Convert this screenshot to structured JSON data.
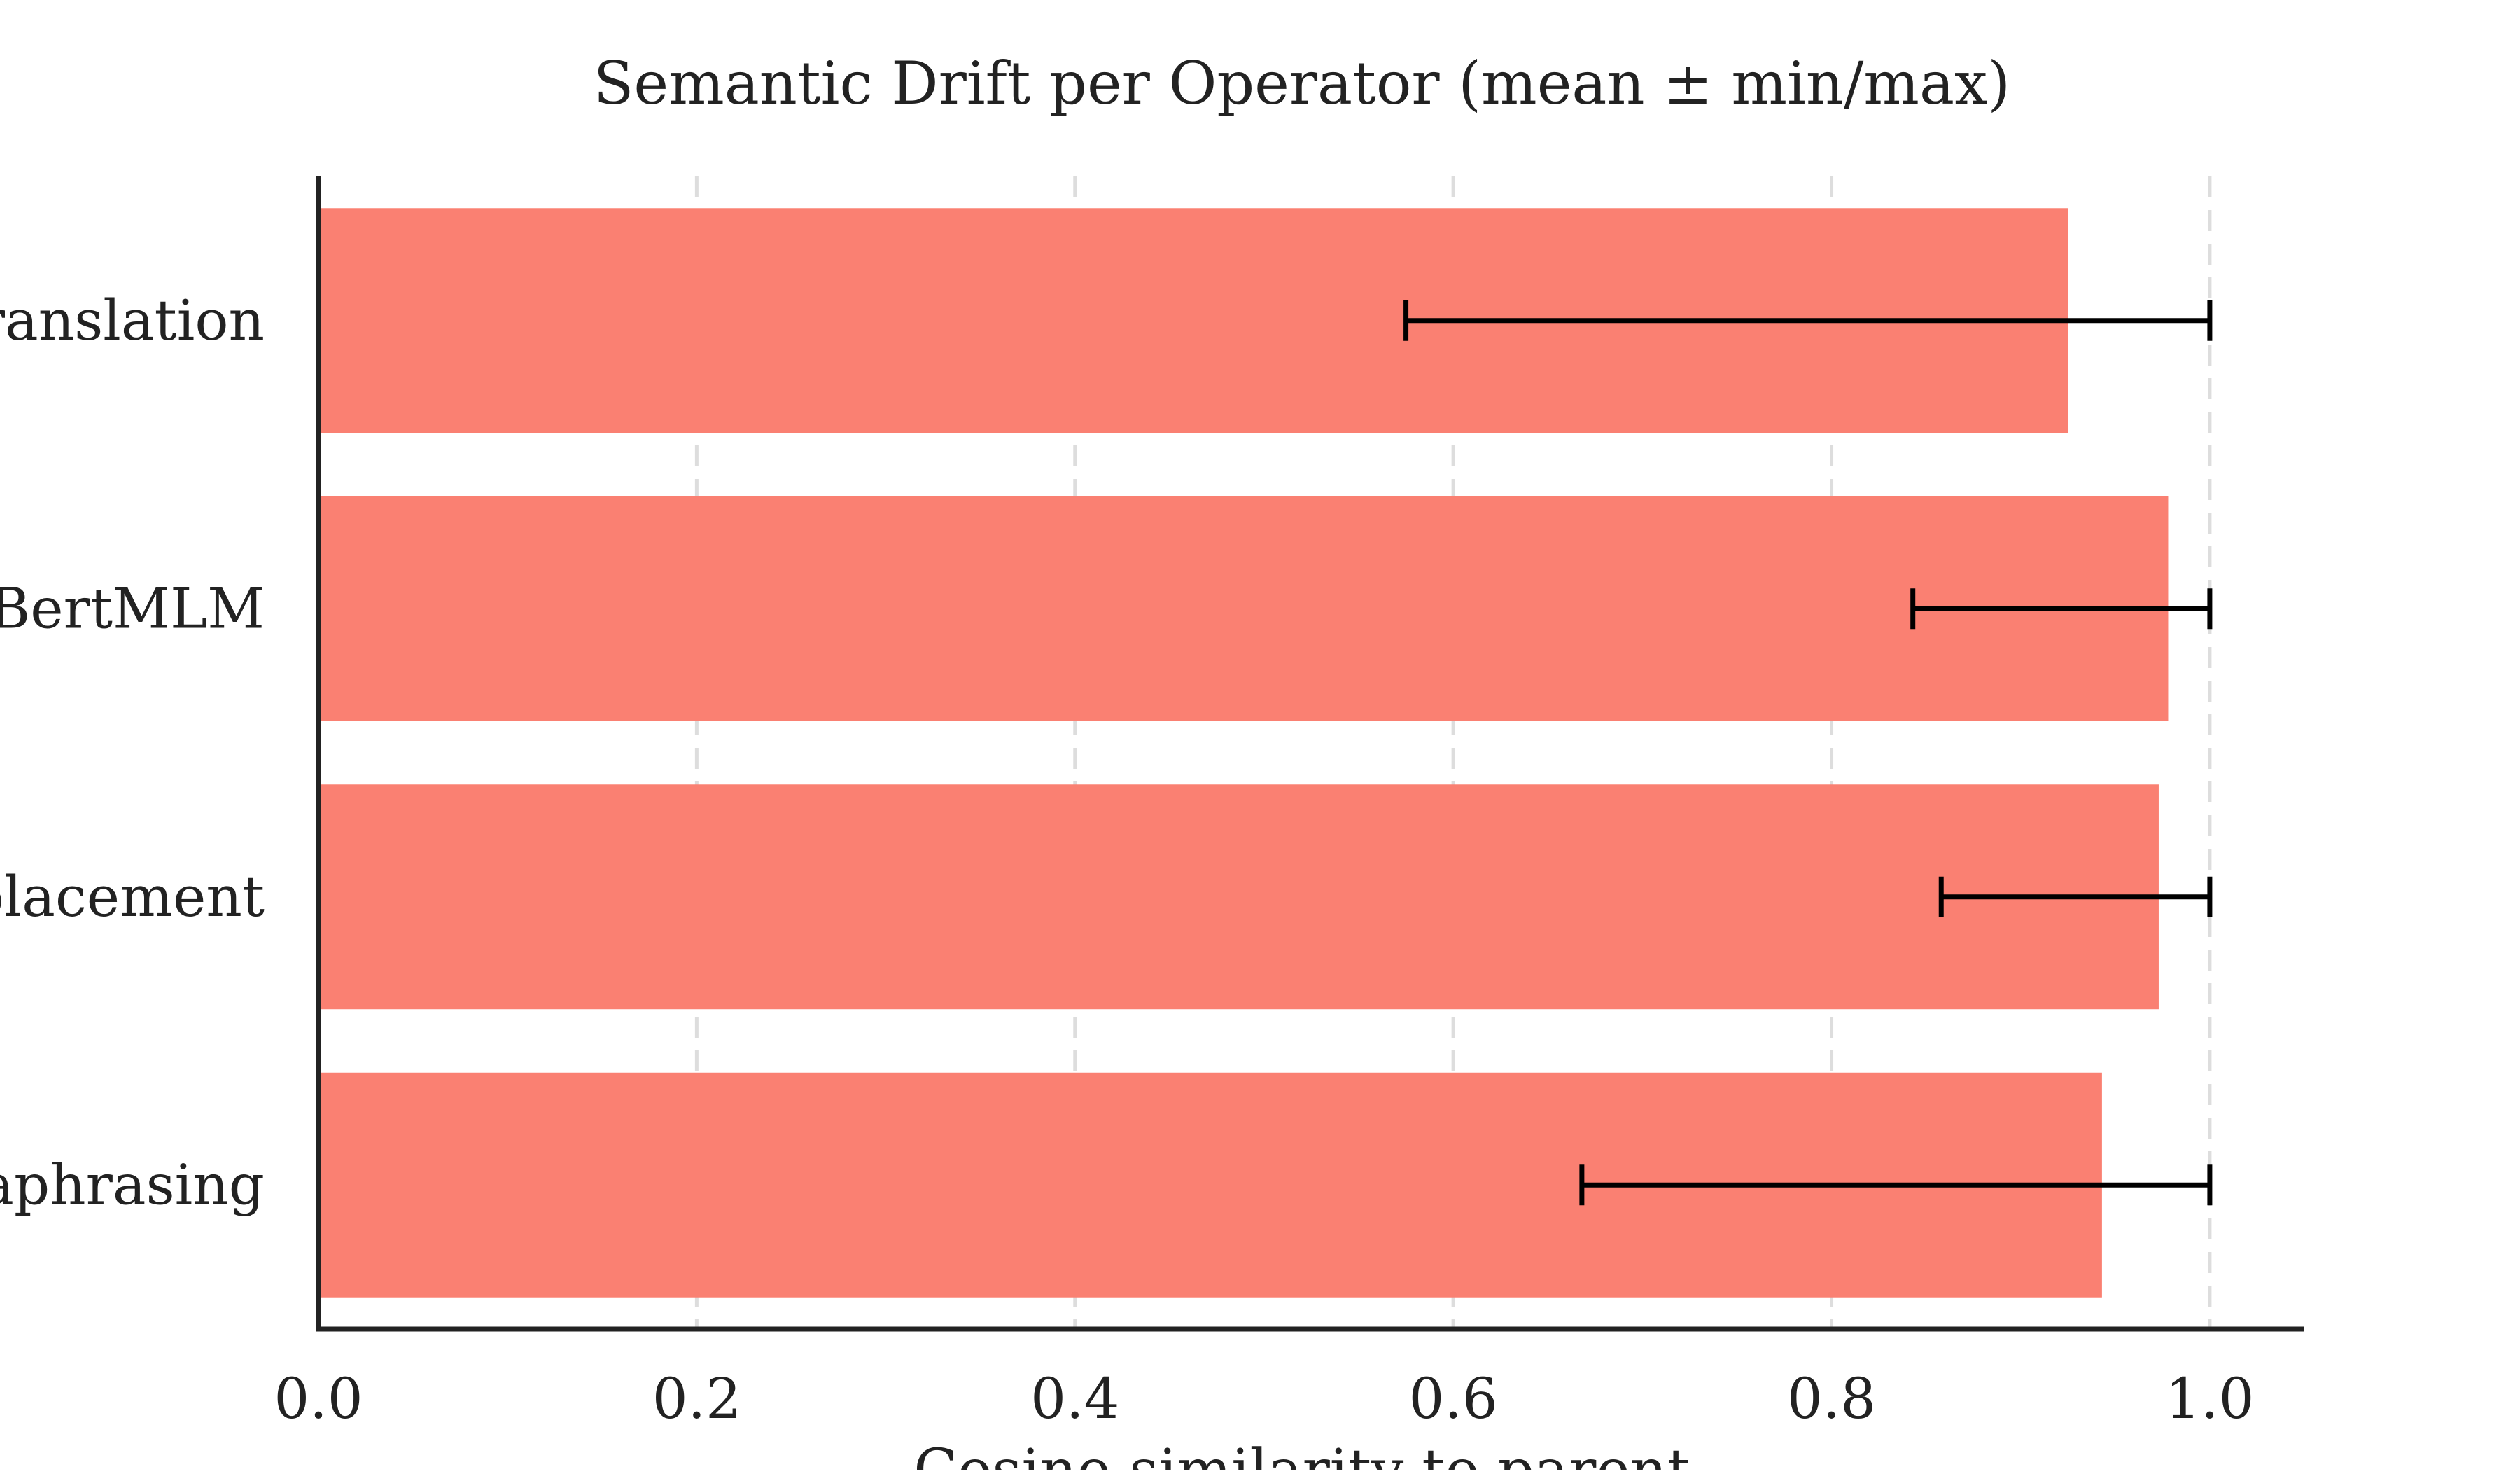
{
  "chart_data": {
    "type": "bar",
    "orientation": "horizontal",
    "title": "Semantic Drift per Operator (mean ± min/max)",
    "xlabel": "Cosine similarity to parent",
    "ylabel": "",
    "categories": [
      "ranslation",
      "BertMLM",
      "placement",
      "aphrasing"
    ],
    "values": [
      0.925,
      0.978,
      0.973,
      0.943
    ],
    "error_min": [
      0.575,
      0.843,
      0.858,
      0.668
    ],
    "error_max": [
      1.0,
      1.0,
      1.0,
      1.0
    ],
    "xlim": [
      0,
      1.05
    ],
    "xticks": [
      0.0,
      0.2,
      0.4,
      0.6,
      0.8,
      1.0
    ],
    "xtick_labels": [
      "0.0",
      "0.2",
      "0.4",
      "0.6",
      "0.8",
      "1.0"
    ],
    "grid": "x, dashed",
    "legend": "none",
    "colors": {
      "bar": "#fa8072",
      "error_bar": "#000000",
      "axis": "#222222",
      "grid": "#dddddd"
    }
  }
}
